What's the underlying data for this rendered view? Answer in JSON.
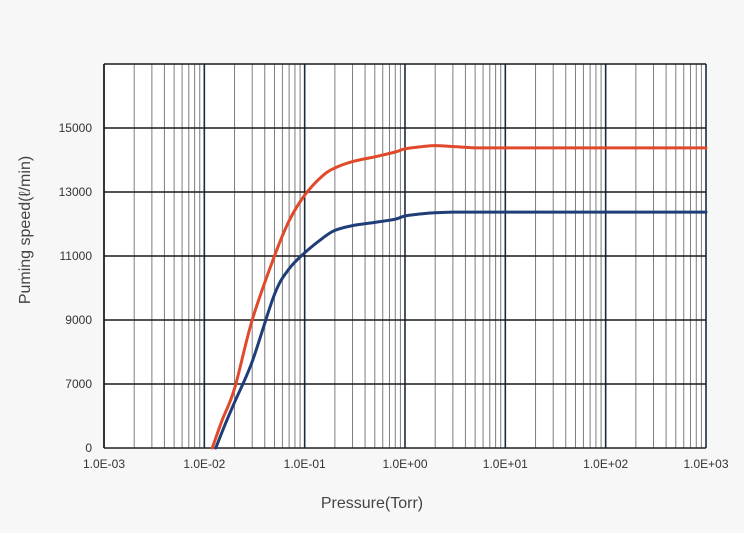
{
  "chart_data": {
    "type": "line",
    "title": "",
    "xlabel": "Pressure(Torr)",
    "ylabel": "Puming speed(ℓ/min)",
    "x_scale": "log",
    "xlim": [
      0.001,
      1000
    ],
    "x_ticks": [
      {
        "value": 0.001,
        "label": "1.0E-03"
      },
      {
        "value": 0.01,
        "label": "1.0E-02"
      },
      {
        "value": 0.1,
        "label": "1.0E-01"
      },
      {
        "value": 1,
        "label": "1.0E+00"
      },
      {
        "value": 10,
        "label": "1.0E+01"
      },
      {
        "value": 100,
        "label": "1.0E+02"
      },
      {
        "value": 1000,
        "label": "1.0E+03"
      }
    ],
    "y_ticks": [
      {
        "value": 0,
        "label": "0"
      },
      {
        "value": 7000,
        "label": "7000"
      },
      {
        "value": 9000,
        "label": "9000"
      },
      {
        "value": 11000,
        "label": "11000"
      },
      {
        "value": 13000,
        "label": "13000"
      },
      {
        "value": 15000,
        "label": "15000"
      }
    ],
    "ylim": [
      0,
      17000
    ],
    "grid": true,
    "series": [
      {
        "color": "#e0492a",
        "points": [
          [
            0.012,
            0
          ],
          [
            0.015,
            3000
          ],
          [
            0.02,
            6500
          ],
          [
            0.03,
            9000
          ],
          [
            0.05,
            11000
          ],
          [
            0.07,
            12100
          ],
          [
            0.1,
            12900
          ],
          [
            0.15,
            13500
          ],
          [
            0.2,
            13750
          ],
          [
            0.3,
            13950
          ],
          [
            0.5,
            14100
          ],
          [
            0.8,
            14250
          ],
          [
            1.0,
            14350
          ],
          [
            1.5,
            14420
          ],
          [
            2.0,
            14450
          ],
          [
            3.0,
            14420
          ],
          [
            5.0,
            14380
          ],
          [
            10,
            14380
          ],
          [
            100,
            14380
          ],
          [
            1000,
            14380
          ]
        ]
      },
      {
        "color": "#1f3e78",
        "points": [
          [
            0.013,
            0
          ],
          [
            0.016,
            2500
          ],
          [
            0.02,
            5000
          ],
          [
            0.03,
            7700
          ],
          [
            0.05,
            9800
          ],
          [
            0.07,
            10600
          ],
          [
            0.1,
            11100
          ],
          [
            0.15,
            11550
          ],
          [
            0.2,
            11800
          ],
          [
            0.3,
            11950
          ],
          [
            0.5,
            12050
          ],
          [
            0.8,
            12150
          ],
          [
            1.0,
            12250
          ],
          [
            1.5,
            12320
          ],
          [
            2.0,
            12350
          ],
          [
            3.0,
            12370
          ],
          [
            5.0,
            12370
          ],
          [
            10,
            12370
          ],
          [
            100,
            12370
          ],
          [
            1000,
            12370
          ]
        ]
      }
    ]
  }
}
